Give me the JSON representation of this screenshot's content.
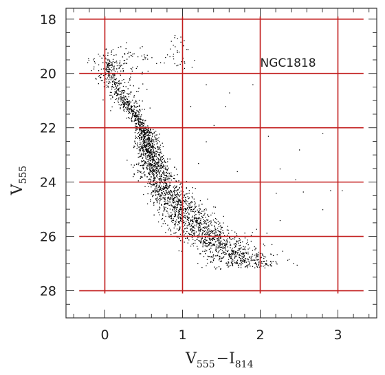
{
  "chart_data": {
    "type": "scatter",
    "xlabel": {
      "main": "V",
      "sub": "555",
      "minus": "−",
      "main2": "I",
      "sub2": "814"
    },
    "ylabel": {
      "main": "V",
      "sub": "555"
    },
    "xlim": [
      -0.5,
      3.5
    ],
    "ylim": [
      17.6,
      29.0
    ],
    "y_inverted": true,
    "x_ticks_major": [
      0,
      1,
      2,
      3
    ],
    "x_tick_labels": [
      "0",
      "1",
      "2",
      "3"
    ],
    "y_ticks_major": [
      18,
      20,
      22,
      24,
      26,
      28
    ],
    "y_tick_labels": [
      "18",
      "20",
      "22",
      "24",
      "26",
      "28"
    ],
    "grid": true,
    "grid_color": "#c21c1c",
    "grid_x_extent": [
      -0.33,
      3.33
    ],
    "grid_y_extent": [
      17.9,
      28.1
    ],
    "point_color": "#000000",
    "annotation": {
      "text": "NGC1818",
      "x": 2.0,
      "y": 19.75
    },
    "main_sequence_ridge": [
      {
        "y": 19.3,
        "x": 0.02
      },
      {
        "y": 20.0,
        "x": 0.06
      },
      {
        "y": 20.8,
        "x": 0.2
      },
      {
        "y": 21.5,
        "x": 0.38
      },
      {
        "y": 22.2,
        "x": 0.52
      },
      {
        "y": 22.8,
        "x": 0.57
      },
      {
        "y": 23.4,
        "x": 0.62
      },
      {
        "y": 24.0,
        "x": 0.72
      },
      {
        "y": 24.6,
        "x": 0.88
      },
      {
        "y": 25.2,
        "x": 1.02
      },
      {
        "y": 25.8,
        "x": 1.25
      },
      {
        "y": 26.4,
        "x": 1.55
      },
      {
        "y": 27.0,
        "x": 1.85
      }
    ],
    "upper_clump_points": [
      [
        0.1,
        19.1
      ],
      [
        0.2,
        19.0
      ],
      [
        0.3,
        19.2
      ],
      [
        0.45,
        19.05
      ],
      [
        0.5,
        19.3
      ],
      [
        0.6,
        19.4
      ],
      [
        0.25,
        19.5
      ],
      [
        0.35,
        19.35
      ],
      [
        0.15,
        19.6
      ],
      [
        0.4,
        19.8
      ],
      [
        0.55,
        19.9
      ],
      [
        0.05,
        19.7
      ],
      [
        0.85,
        18.8
      ],
      [
        0.9,
        19.0
      ],
      [
        0.95,
        19.2
      ],
      [
        1.0,
        18.95
      ],
      [
        0.88,
        19.45
      ],
      [
        0.92,
        19.7
      ],
      [
        1.05,
        19.1
      ],
      [
        0.98,
        19.55
      ],
      [
        0.8,
        19.3
      ],
      [
        1.02,
        19.8
      ],
      [
        0.76,
        19.6
      ],
      [
        0.93,
        18.7
      ]
    ],
    "field_scatter_points": [
      [
        1.15,
        19.5
      ],
      [
        1.3,
        20.4
      ],
      [
        1.6,
        20.7
      ],
      [
        1.9,
        20.4
      ],
      [
        1.4,
        21.9
      ],
      [
        2.1,
        22.3
      ],
      [
        2.8,
        22.2
      ],
      [
        1.2,
        23.3
      ],
      [
        2.25,
        23.5
      ],
      [
        2.5,
        22.8
      ],
      [
        1.1,
        21.2
      ],
      [
        2.9,
        24.3
      ],
      [
        2.45,
        23.9
      ],
      [
        2.2,
        24.4
      ],
      [
        2.55,
        24.35
      ],
      [
        2.8,
        25.0
      ],
      [
        2.25,
        25.4
      ],
      [
        3.05,
        24.3
      ],
      [
        1.3,
        22.5
      ],
      [
        1.7,
        23.6
      ],
      [
        1.55,
        21.2
      ],
      [
        2.05,
        26.9
      ],
      [
        1.95,
        26.7
      ],
      [
        1.75,
        26.4
      ]
    ]
  }
}
